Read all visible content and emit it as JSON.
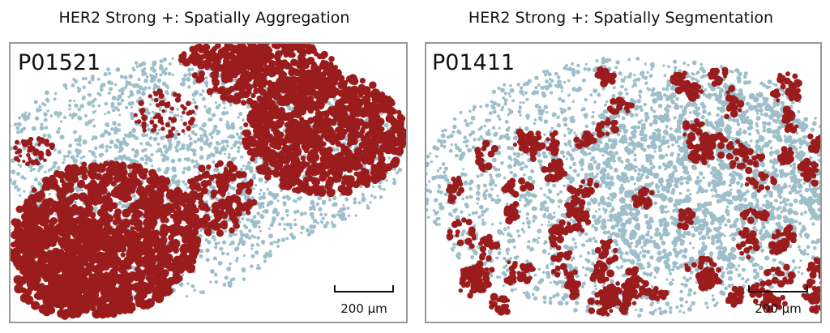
{
  "panels": [
    {
      "title": "HER2 Strong +: Spatially Aggregation",
      "sample_id": "P01521",
      "scale_bar": "200 µm"
    },
    {
      "title": "HER2 Strong +: Spatially Segmentation",
      "sample_id": "P01411",
      "scale_bar": "200 µm"
    }
  ]
}
